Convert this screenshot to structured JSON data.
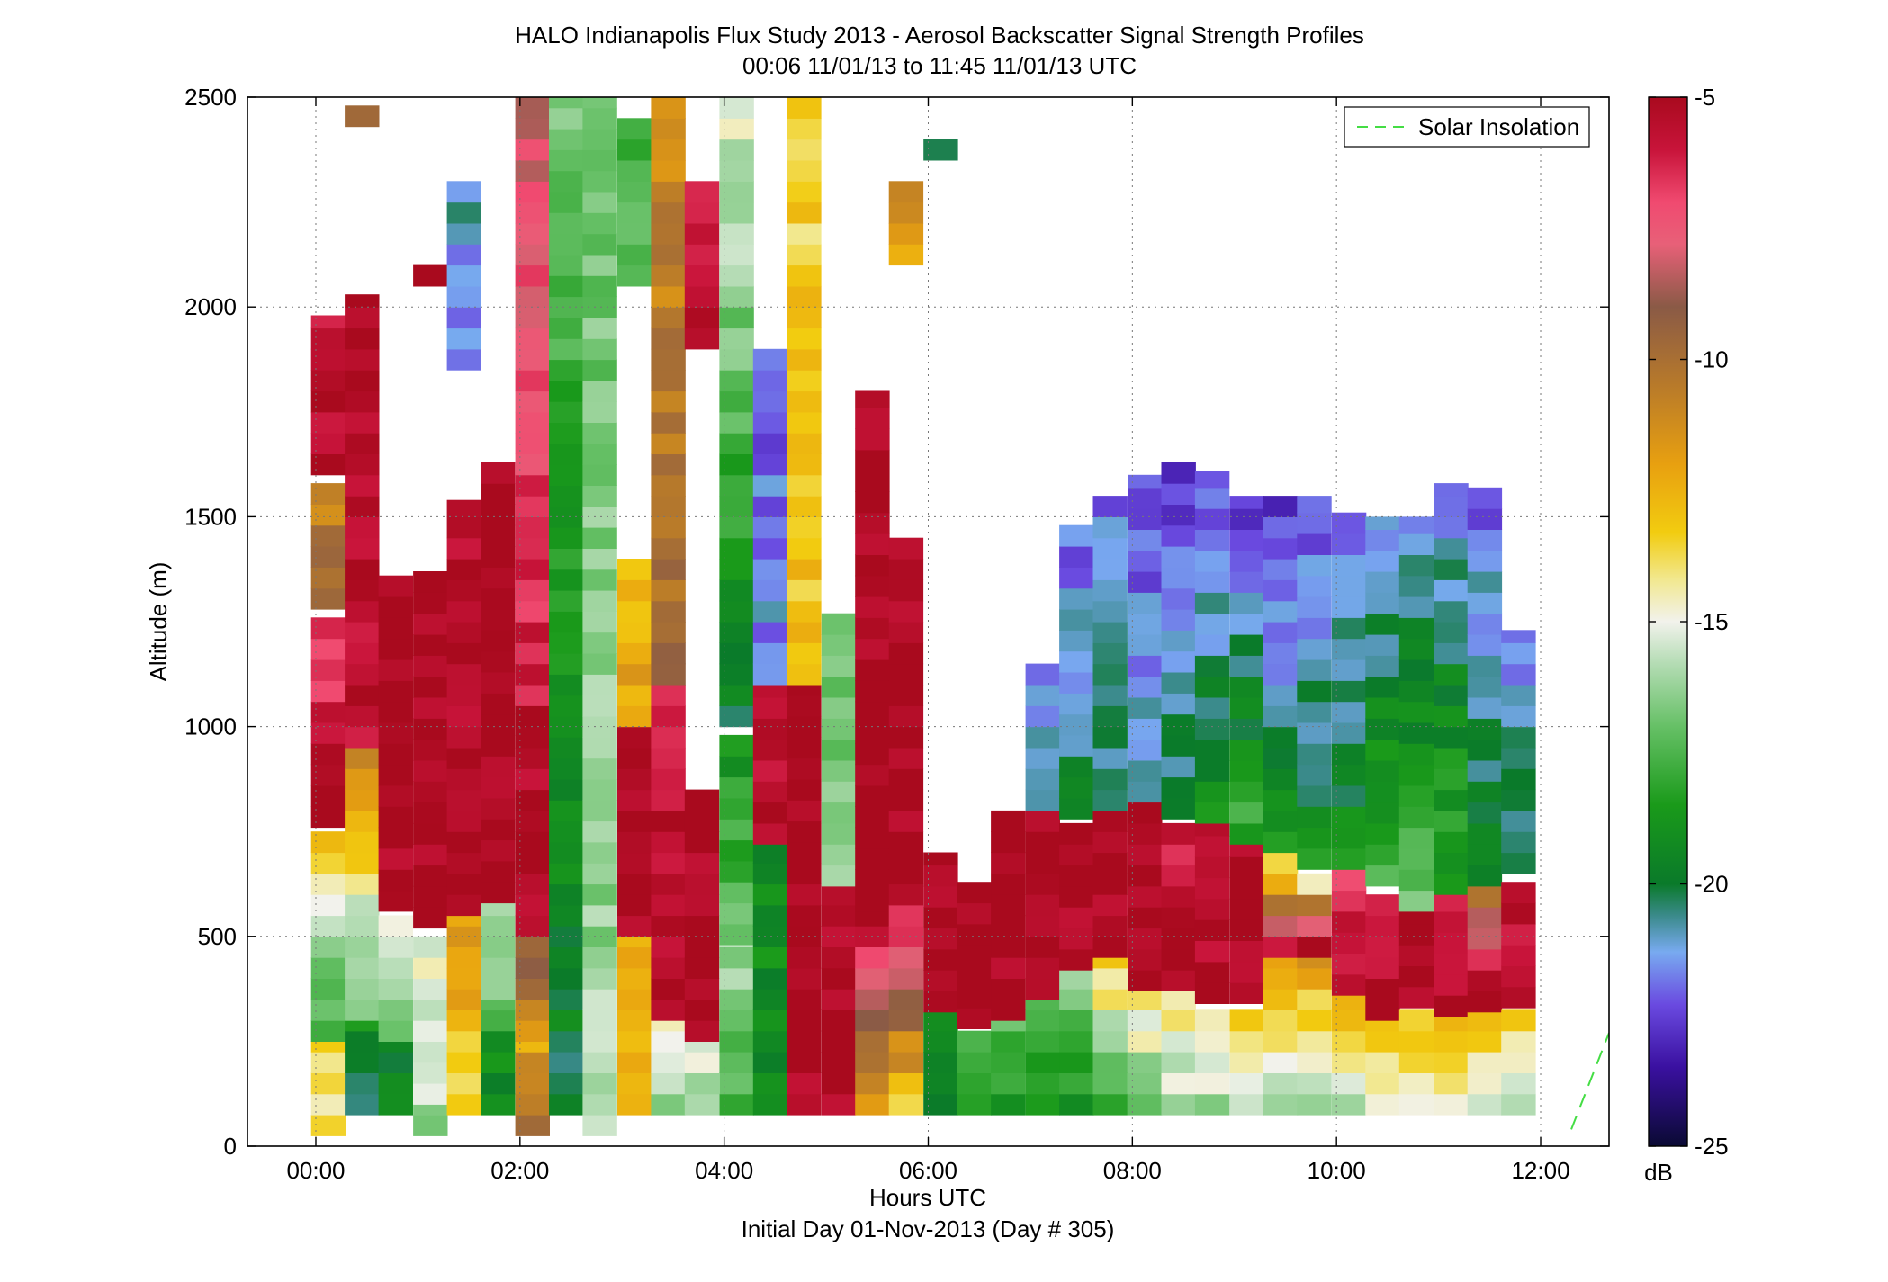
{
  "chart_data": {
    "type": "heatmap",
    "title": "HALO Indianapolis Flux Study 2013 - Aerosol Backscatter Signal Strength Profiles",
    "subtitle": "00:06 11/01/13 to 11:45 11/01/13  UTC",
    "xlabel": "Hours UTC",
    "xlabel2": "Initial Day 01-Nov-2013 (Day # 305)",
    "ylabel": "Altitude (m)",
    "xlim_hours": [
      -0.67,
      12.67
    ],
    "ylim": [
      0,
      2500
    ],
    "x_ticks": [
      {
        "v": 0,
        "label": "00:00"
      },
      {
        "v": 2,
        "label": "02:00"
      },
      {
        "v": 4,
        "label": "04:00"
      },
      {
        "v": 6,
        "label": "06:00"
      },
      {
        "v": 8,
        "label": "08:00"
      },
      {
        "v": 10,
        "label": "10:00"
      },
      {
        "v": 12,
        "label": "12:00"
      }
    ],
    "y_ticks": [
      {
        "v": 0,
        "label": "0"
      },
      {
        "v": 500,
        "label": "500"
      },
      {
        "v": 1000,
        "label": "1000"
      },
      {
        "v": 1500,
        "label": "1500"
      },
      {
        "v": 2000,
        "label": "2000"
      },
      {
        "v": 2500,
        "label": "2500"
      }
    ],
    "grid": true,
    "legend": {
      "position": "top-right",
      "entries": [
        {
          "label": "Solar Insolation",
          "color": "#44dd44",
          "style": "dashed"
        }
      ]
    },
    "colorbar": {
      "min": -25,
      "max": -5,
      "unit": "dB",
      "ticks": [
        {
          "v": -5,
          "label": "-5"
        },
        {
          "v": -10,
          "label": "-10"
        },
        {
          "v": -15,
          "label": "-15"
        },
        {
          "v": -20,
          "label": "-20"
        },
        {
          "v": -25,
          "label": "-25"
        }
      ]
    },
    "colors": {
      "plume": "#a90a1e",
      "stops": [
        {
          "v": -25,
          "c": "#0a0a33"
        },
        {
          "v": -23.5,
          "c": "#3a10a0"
        },
        {
          "v": -22.3,
          "c": "#6a4ae0"
        },
        {
          "v": -21.3,
          "c": "#78aaf0"
        },
        {
          "v": -20.6,
          "c": "#3a8a8a"
        },
        {
          "v": -20,
          "c": "#0a7a2a"
        },
        {
          "v": -18.5,
          "c": "#1a9a1a"
        },
        {
          "v": -17,
          "c": "#66c066"
        },
        {
          "v": -15.8,
          "c": "#b4dcb4"
        },
        {
          "v": -15,
          "c": "#f2f2ec"
        },
        {
          "v": -14.2,
          "c": "#f2e890"
        },
        {
          "v": -13.3,
          "c": "#f2cc10"
        },
        {
          "v": -12,
          "c": "#e8a010"
        },
        {
          "v": -10.5,
          "c": "#b87a2a"
        },
        {
          "v": -9,
          "c": "#8a5a46"
        },
        {
          "v": -7.8,
          "c": "#e86078"
        },
        {
          "v": -7,
          "c": "#f04a70"
        },
        {
          "v": -6,
          "c": "#c8143a"
        },
        {
          "v": -5,
          "c": "#a90a1e"
        }
      ]
    },
    "solar_insolation": [
      {
        "x": 12.3,
        "y": 40
      },
      {
        "x": 12.67,
        "y": 270
      }
    ],
    "time_step_hours": 0.333,
    "altitude_step_m": 50,
    "profiles": [
      {
        "t": 0.12,
        "segments": [
          {
            "from": 25,
            "to": 250,
            "dB_bottom": -14,
            "dB_top": -13.5
          },
          {
            "from": 250,
            "to": 500,
            "dB_bottom": -18,
            "dB_top": -16
          },
          {
            "from": 500,
            "to": 760,
            "dB_bottom": -15,
            "dB_top": -13
          },
          {
            "from": 760,
            "to": 1280,
            "dB_bottom": -5,
            "dB_top": -7
          },
          {
            "from": 1280,
            "to": 1600,
            "dB_bottom": -9,
            "dB_top": -11
          },
          {
            "from": 1600,
            "to": 1980,
            "dB_bottom": -5,
            "dB_top": -6.5
          }
        ]
      },
      {
        "t": 0.45,
        "segments": [
          {
            "from": 75,
            "to": 300,
            "dB_bottom": -20.5,
            "dB_top": -19
          },
          {
            "from": 300,
            "to": 600,
            "dB_bottom": -17,
            "dB_top": -15.5
          },
          {
            "from": 600,
            "to": 950,
            "dB_bottom": -14,
            "dB_top": -11
          },
          {
            "from": 950,
            "to": 2030,
            "dB_bottom": -5.5,
            "dB_top": -5
          },
          {
            "from": 2430,
            "to": 2500,
            "dB_bottom": -9,
            "dB_top": -5
          }
        ]
      },
      {
        "t": 0.78,
        "segments": [
          {
            "from": 75,
            "to": 250,
            "dB_bottom": -19.5,
            "dB_top": -19.5
          },
          {
            "from": 250,
            "to": 560,
            "dB_bottom": -17,
            "dB_top": -15
          },
          {
            "from": 560,
            "to": 1380,
            "dB_bottom": -5,
            "dB_top": -5
          }
        ]
      },
      {
        "t": 1.12,
        "segments": [
          {
            "from": 25,
            "to": 100,
            "dB_bottom": -17,
            "dB_top": -17
          },
          {
            "from": 100,
            "to": 520,
            "dB_bottom": -15.5,
            "dB_top": -15
          },
          {
            "from": 520,
            "to": 1380,
            "dB_bottom": -5,
            "dB_top": -5
          },
          {
            "from": 2050,
            "to": 2100,
            "dB_bottom": -5,
            "dB_top": -5
          }
        ]
      },
      {
        "t": 1.45,
        "segments": [
          {
            "from": 75,
            "to": 550,
            "dB_bottom": -13.3,
            "dB_top": -12
          },
          {
            "from": 550,
            "to": 1540,
            "dB_bottom": -5,
            "dB_top": -5.5
          },
          {
            "from": 1850,
            "to": 2300,
            "dB_bottom": -21.5,
            "dB_top": -21
          }
        ]
      },
      {
        "t": 1.78,
        "segments": [
          {
            "from": 75,
            "to": 350,
            "dB_bottom": -19.5,
            "dB_top": -18
          },
          {
            "from": 350,
            "to": 580,
            "dB_bottom": -17,
            "dB_top": -16
          },
          {
            "from": 580,
            "to": 1640,
            "dB_bottom": -5,
            "dB_top": -5
          }
        ]
      },
      {
        "t": 2.12,
        "segments": [
          {
            "from": 25,
            "to": 250,
            "dB_bottom": -10.5,
            "dB_top": -12
          },
          {
            "from": 250,
            "to": 500,
            "dB_bottom": -11,
            "dB_top": -9
          },
          {
            "from": 500,
            "to": 2500,
            "dB_bottom": -5,
            "dB_top": -8
          }
        ]
      },
      {
        "t": 2.45,
        "segments": [
          {
            "from": 75,
            "to": 2500,
            "dB_bottom": -20,
            "dB_top": -17
          }
        ]
      },
      {
        "t": 2.78,
        "segments": [
          {
            "from": 25,
            "to": 2500,
            "dB_bottom": -16,
            "dB_top": -17
          }
        ]
      },
      {
        "t": 3.12,
        "segments": [
          {
            "from": 75,
            "to": 500,
            "dB_bottom": -13,
            "dB_top": -12
          },
          {
            "from": 500,
            "to": 1000,
            "dB_bottom": -5,
            "dB_top": -5
          },
          {
            "from": 1000,
            "to": 1400,
            "dB_bottom": -12,
            "dB_top": -13
          },
          {
            "from": 2050,
            "to": 2450,
            "dB_bottom": -17,
            "dB_top": -18
          }
        ]
      },
      {
        "t": 3.45,
        "segments": [
          {
            "from": 75,
            "to": 300,
            "dB_bottom": -16,
            "dB_top": -14
          },
          {
            "from": 300,
            "to": 1100,
            "dB_bottom": -5,
            "dB_top": -6
          },
          {
            "from": 1100,
            "to": 2500,
            "dB_bottom": -10,
            "dB_top": -11
          }
        ]
      },
      {
        "t": 3.78,
        "segments": [
          {
            "from": 75,
            "to": 250,
            "dB_bottom": -16.5,
            "dB_top": -15
          },
          {
            "from": 250,
            "to": 850,
            "dB_bottom": -5,
            "dB_top": -5
          },
          {
            "from": 1900,
            "to": 2300,
            "dB_bottom": -5,
            "dB_top": -6
          }
        ]
      },
      {
        "t": 4.12,
        "segments": [
          {
            "from": 75,
            "to": 480,
            "dB_bottom": -18,
            "dB_top": -16
          },
          {
            "from": 480,
            "to": 1000,
            "dB_bottom": -17,
            "dB_top": -19
          },
          {
            "from": 1000,
            "to": 2500,
            "dB_bottom": -20,
            "dB_top": -15
          }
        ]
      },
      {
        "t": 4.45,
        "segments": [
          {
            "from": 75,
            "to": 720,
            "dB_bottom": -19.5,
            "dB_top": -19
          },
          {
            "from": 720,
            "to": 1100,
            "dB_bottom": -5,
            "dB_top": -6
          },
          {
            "from": 1100,
            "to": 1900,
            "dB_bottom": -21.5,
            "dB_top": -22
          }
        ]
      },
      {
        "t": 4.78,
        "segments": [
          {
            "from": 75,
            "to": 1100,
            "dB_bottom": -5,
            "dB_top": -5
          },
          {
            "from": 1100,
            "to": 2500,
            "dB_bottom": -13,
            "dB_top": -13.5
          }
        ]
      },
      {
        "t": 5.12,
        "segments": [
          {
            "from": 75,
            "to": 620,
            "dB_bottom": -5,
            "dB_top": -5.5
          },
          {
            "from": 620,
            "to": 1280,
            "dB_bottom": -16,
            "dB_top": -17
          }
        ]
      },
      {
        "t": 5.45,
        "segments": [
          {
            "from": 75,
            "to": 560,
            "dB_bottom": -12,
            "dB_top": -5
          },
          {
            "from": 560,
            "to": 1800,
            "dB_bottom": -5,
            "dB_top": -5
          }
        ]
      },
      {
        "t": 5.78,
        "segments": [
          {
            "from": 75,
            "to": 650,
            "dB_bottom": -13,
            "dB_top": -5
          },
          {
            "from": 650,
            "to": 1450,
            "dB_bottom": -5,
            "dB_top": -5
          },
          {
            "from": 2100,
            "to": 2300,
            "dB_bottom": -12,
            "dB_top": -11
          }
        ]
      },
      {
        "t": 6.12,
        "segments": [
          {
            "from": 75,
            "to": 320,
            "dB_bottom": -20,
            "dB_top": -19
          },
          {
            "from": 320,
            "to": 700,
            "dB_bottom": -5,
            "dB_top": -5
          },
          {
            "from": 2350,
            "to": 2400,
            "dB_bottom": -19.5,
            "dB_top": -19.5
          }
        ]
      },
      {
        "t": 6.45,
        "segments": [
          {
            "from": 75,
            "to": 280,
            "dB_bottom": -19,
            "dB_top": -17
          },
          {
            "from": 280,
            "to": 650,
            "dB_bottom": -5,
            "dB_top": -5
          }
        ]
      },
      {
        "t": 6.78,
        "segments": [
          {
            "from": 75,
            "to": 300,
            "dB_bottom": -19,
            "dB_top": -17
          },
          {
            "from": 300,
            "to": 800,
            "dB_bottom": -5,
            "dB_top": -5
          }
        ]
      },
      {
        "t": 7.12,
        "segments": [
          {
            "from": 75,
            "to": 350,
            "dB_bottom": -19,
            "dB_top": -17
          },
          {
            "from": 350,
            "to": 800,
            "dB_bottom": -5,
            "dB_top": -5
          },
          {
            "from": 800,
            "to": 1150,
            "dB_bottom": -21,
            "dB_top": -22
          }
        ]
      },
      {
        "t": 7.45,
        "segments": [
          {
            "from": 75,
            "to": 420,
            "dB_bottom": -19,
            "dB_top": -16
          },
          {
            "from": 420,
            "to": 780,
            "dB_bottom": -5,
            "dB_top": -5
          },
          {
            "from": 780,
            "to": 1500,
            "dB_bottom": -20,
            "dB_top": -22
          }
        ]
      },
      {
        "t": 7.78,
        "segments": [
          {
            "from": 75,
            "to": 450,
            "dB_bottom": -18.5,
            "dB_top": -13
          },
          {
            "from": 450,
            "to": 800,
            "dB_bottom": -5,
            "dB_top": -5
          },
          {
            "from": 800,
            "to": 1550,
            "dB_bottom": -20,
            "dB_top": -22
          }
        ]
      },
      {
        "t": 8.12,
        "segments": [
          {
            "from": 75,
            "to": 370,
            "dB_bottom": -17,
            "dB_top": -14
          },
          {
            "from": 370,
            "to": 820,
            "dB_bottom": -5,
            "dB_top": -5
          },
          {
            "from": 820,
            "to": 1600,
            "dB_bottom": -21,
            "dB_top": -22.5
          }
        ]
      },
      {
        "t": 8.45,
        "segments": [
          {
            "from": 75,
            "to": 370,
            "dB_bottom": -16,
            "dB_top": -14
          },
          {
            "from": 370,
            "to": 780,
            "dB_bottom": -5,
            "dB_top": -6
          },
          {
            "from": 780,
            "to": 1650,
            "dB_bottom": -20,
            "dB_top": -22.5
          }
        ]
      },
      {
        "t": 8.78,
        "segments": [
          {
            "from": 75,
            "to": 340,
            "dB_bottom": -16,
            "dB_top": -14
          },
          {
            "from": 340,
            "to": 770,
            "dB_bottom": -5,
            "dB_top": -6
          },
          {
            "from": 770,
            "to": 1610,
            "dB_bottom": -19,
            "dB_top": -22.3
          }
        ]
      },
      {
        "t": 9.12,
        "segments": [
          {
            "from": 75,
            "to": 340,
            "dB_bottom": -16,
            "dB_top": -13.5
          },
          {
            "from": 340,
            "to": 720,
            "dB_bottom": -5,
            "dB_top": -5
          },
          {
            "from": 720,
            "to": 1550,
            "dB_bottom": -18,
            "dB_top": -22.5
          }
        ]
      },
      {
        "t": 9.45,
        "segments": [
          {
            "from": 75,
            "to": 450,
            "dB_bottom": -16,
            "dB_top": -12
          },
          {
            "from": 450,
            "to": 700,
            "dB_bottom": -6,
            "dB_top": -14
          },
          {
            "from": 700,
            "to": 1550,
            "dB_bottom": -19,
            "dB_top": -23
          }
        ]
      },
      {
        "t": 9.78,
        "segments": [
          {
            "from": 75,
            "to": 450,
            "dB_bottom": -16,
            "dB_top": -12
          },
          {
            "from": 450,
            "to": 660,
            "dB_bottom": -5,
            "dB_top": -14
          },
          {
            "from": 660,
            "to": 1550,
            "dB_bottom": -19,
            "dB_top": -22.5
          }
        ]
      },
      {
        "t": 10.12,
        "segments": [
          {
            "from": 75,
            "to": 360,
            "dB_bottom": -16,
            "dB_top": -12
          },
          {
            "from": 360,
            "to": 660,
            "dB_bottom": -5,
            "dB_top": -7
          },
          {
            "from": 660,
            "to": 1520,
            "dB_bottom": -19,
            "dB_top": -22
          }
        ]
      },
      {
        "t": 10.45,
        "segments": [
          {
            "from": 75,
            "to": 300,
            "dB_bottom": -15.5,
            "dB_top": -13
          },
          {
            "from": 300,
            "to": 620,
            "dB_bottom": -5,
            "dB_top": -7
          },
          {
            "from": 620,
            "to": 1500,
            "dB_bottom": -18,
            "dB_top": -21.5
          }
        ]
      },
      {
        "t": 10.78,
        "segments": [
          {
            "from": 75,
            "to": 330,
            "dB_bottom": -15,
            "dB_top": -13
          },
          {
            "from": 330,
            "to": 560,
            "dB_bottom": -5,
            "dB_top": -5
          },
          {
            "from": 560,
            "to": 1500,
            "dB_bottom": -17,
            "dB_top": -21.5
          }
        ]
      },
      {
        "t": 11.12,
        "segments": [
          {
            "from": 75,
            "to": 310,
            "dB_bottom": -15,
            "dB_top": -13
          },
          {
            "from": 310,
            "to": 600,
            "dB_bottom": -5,
            "dB_top": -7
          },
          {
            "from": 600,
            "to": 1580,
            "dB_bottom": -18,
            "dB_top": -21.5
          }
        ]
      },
      {
        "t": 11.45,
        "segments": [
          {
            "from": 75,
            "to": 320,
            "dB_bottom": -15.5,
            "dB_top": -13
          },
          {
            "from": 320,
            "to": 620,
            "dB_bottom": -5,
            "dB_top": -10
          },
          {
            "from": 620,
            "to": 1580,
            "dB_bottom": -19.5,
            "dB_top": -22
          }
        ]
      },
      {
        "t": 11.78,
        "segments": [
          {
            "from": 75,
            "to": 330,
            "dB_bottom": -16,
            "dB_top": -13
          },
          {
            "from": 330,
            "to": 650,
            "dB_bottom": -5,
            "dB_top": -6
          },
          {
            "from": 650,
            "to": 1230,
            "dB_bottom": -20,
            "dB_top": -21.5
          }
        ]
      }
    ]
  }
}
